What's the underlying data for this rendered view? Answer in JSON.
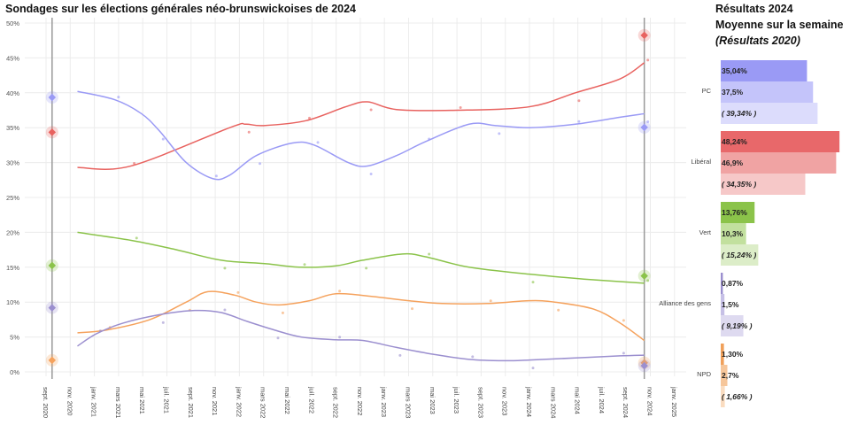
{
  "title": "Sondages sur les élections générales néo-brunswickoises de 2024",
  "right_panel": {
    "title1": "Résultats 2024",
    "title2": "Moyenne sur la semaine",
    "title3": "(Résultats 2020)"
  },
  "chart_data": {
    "type": "line",
    "x_unit": "months since 2020-09-01",
    "ylim": [
      0,
      50
    ],
    "yticks": [
      "0%",
      "5%",
      "10%",
      "15%",
      "20%",
      "25%",
      "30%",
      "35%",
      "40%",
      "45%",
      "50%"
    ],
    "xticks": [
      "sept. 2020",
      "nov. 2020",
      "janv. 2021",
      "mars 2021",
      "mai 2021",
      "juil. 2021",
      "sept. 2021",
      "nov. 2021",
      "janv. 2022",
      "mars 2022",
      "mai 2022",
      "juil. 2022",
      "sept. 2022",
      "nov. 2022",
      "janv. 2023",
      "mars 2023",
      "mai 2023",
      "juil. 2023",
      "sept. 2023",
      "nov. 2023",
      "janv. 2024",
      "mars 2024",
      "mai 2024",
      "juil. 2024",
      "sept. 2024",
      "nov. 2024",
      "janv. 2025"
    ],
    "election_lines": [
      0.5,
      49.5
    ],
    "series": [
      {
        "name": "Libéral",
        "color": "#e8625f",
        "x": [
          2.6,
          7,
          15.2,
          16.5,
          18,
          21.5,
          24.8,
          26.6,
          29,
          34,
          40,
          43.8,
          47.5,
          49.5
        ],
        "y": [
          29.3,
          29.5,
          35,
          35.5,
          35.3,
          36,
          38,
          38.7,
          37.6,
          37.5,
          38,
          40,
          42,
          44.3
        ],
        "election_2020": 34.35,
        "election_2024": 48.24
      },
      {
        "name": "PC",
        "color": "#9a9af5",
        "x": [
          2.6,
          5.7,
          7.9,
          9.4,
          11.6,
          13.8,
          15.2,
          17.4,
          20.4,
          22.2,
          25,
          26.6,
          29,
          31.4,
          35,
          37.2,
          40,
          43.8,
          47.5,
          49.5
        ],
        "y": [
          40.2,
          39,
          37,
          34.5,
          30,
          27.7,
          28.2,
          31,
          32.8,
          32.5,
          30,
          29.5,
          31,
          33,
          35.5,
          35.3,
          35,
          35.5,
          36.5,
          37
        ],
        "election_2020": 39.34,
        "election_2024": 35.04
      },
      {
        "name": "Vert",
        "color": "#8bc34a",
        "x": [
          2.6,
          7.2,
          10.8,
          14.5,
          18.2,
          21.1,
          24,
          26.2,
          29.5,
          31.4,
          35,
          40,
          44.5,
          49.5
        ],
        "y": [
          20,
          18.8,
          17.5,
          16,
          15.5,
          15,
          15.2,
          16,
          16.9,
          16.5,
          15,
          14,
          13.3,
          12.7
        ],
        "election_2020": 15.24,
        "election_2024": 13.76
      },
      {
        "name": "NPD",
        "color": "#f5a25d",
        "x": [
          2.6,
          5,
          8.6,
          11.6,
          13.4,
          15.6,
          17.4,
          19.3,
          21.8,
          24,
          27,
          30,
          32.8,
          36.5,
          40,
          42.1,
          45.3,
          47.5,
          49.5
        ],
        "y": [
          5.6,
          6,
          7.5,
          10,
          11.5,
          11,
          10,
          9.6,
          10.2,
          11.2,
          10.8,
          10.2,
          9.8,
          9.8,
          10.2,
          10,
          9,
          7,
          4.5
        ],
        "election_2020": 1.66,
        "election_2024": 1.3
      },
      {
        "name": "Alliance des gens",
        "color": "#9b8fcf",
        "x": [
          2.6,
          4.2,
          6.4,
          9.4,
          12.3,
          14.5,
          16.7,
          18.9,
          21.1,
          24,
          26.2,
          29,
          32.1,
          35,
          37.9,
          40,
          43.8,
          47.5,
          49.5
        ],
        "y": [
          3.7,
          5.5,
          7,
          8.2,
          8.8,
          8.5,
          7.2,
          6,
          5,
          4.6,
          4.5,
          3.5,
          2.5,
          1.8,
          1.6,
          1.7,
          2,
          2.3,
          2.4
        ],
        "election_2020": 9.19,
        "election_2024": 0.87
      }
    ],
    "bars": [
      {
        "party": "PC",
        "values": [
          35.04,
          37.5,
          39.34
        ],
        "labels": [
          "35,04%",
          "37,5%",
          "( 39,34% )"
        ],
        "colors": [
          "#9a9af5",
          "#c4c4fa",
          "#dcdcfc"
        ]
      },
      {
        "party": "Libéral",
        "values": [
          48.24,
          46.9,
          34.35
        ],
        "labels": [
          "48,24%",
          "46,9%",
          "( 34,35% )"
        ],
        "colors": [
          "#e8686a",
          "#f0a3a3",
          "#f6c8c8"
        ]
      },
      {
        "party": "Vert",
        "values": [
          13.76,
          10.3,
          15.24
        ],
        "labels": [
          "13,76%",
          "10,3%",
          "( 15,24% )"
        ],
        "colors": [
          "#8bc34a",
          "#c2e09e",
          "#dcedc8"
        ]
      },
      {
        "party": "Alliance des gens",
        "values": [
          0.87,
          1.5,
          9.19
        ],
        "labels": [
          "0,87%",
          "1,5%",
          "( 9,19% )"
        ],
        "colors": [
          "#9b8fcf",
          "#c6c0e6",
          "#dedaf0"
        ]
      },
      {
        "party": "NPD",
        "values": [
          1.3,
          2.7,
          1.66
        ],
        "labels": [
          "1,30%",
          "2,7%",
          "( 1,66% )"
        ],
        "colors": [
          "#f0a05a",
          "#f6c69a",
          "#fadcc0"
        ]
      }
    ]
  }
}
